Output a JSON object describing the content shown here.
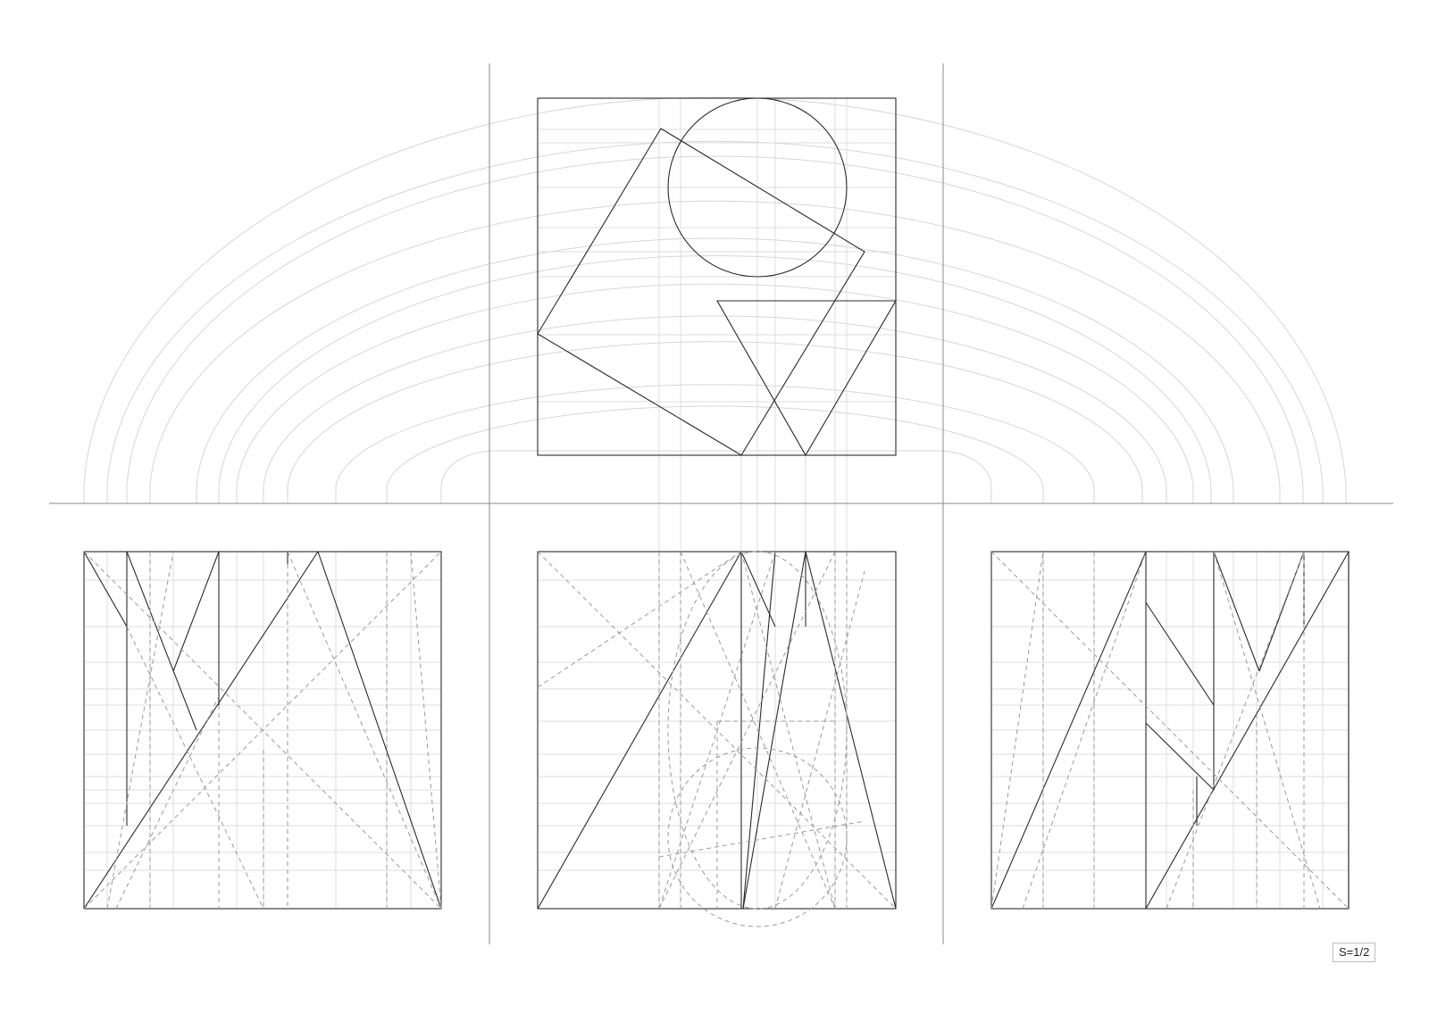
{
  "scale_label": "S=1/2"
}
